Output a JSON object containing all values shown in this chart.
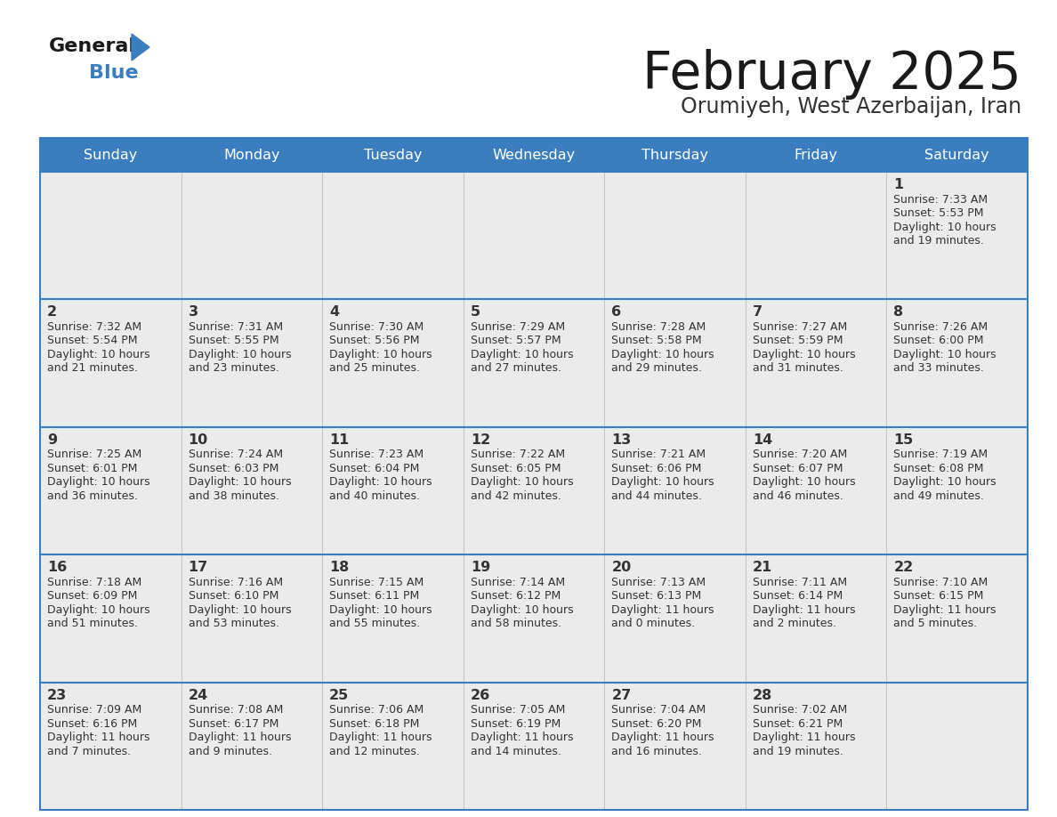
{
  "title": "February 2025",
  "subtitle": "Orumiyeh, West Azerbaijan, Iran",
  "days_of_week": [
    "Sunday",
    "Monday",
    "Tuesday",
    "Wednesday",
    "Thursday",
    "Friday",
    "Saturday"
  ],
  "header_bg": "#3a7ebf",
  "header_text": "#ffffff",
  "cell_bg_light": "#ebebeb",
  "border_color": "#3a7ebf",
  "text_color": "#333333",
  "calendar_data": [
    {
      "day": 1,
      "col": 6,
      "row": 0,
      "sunrise": "7:33 AM",
      "sunset": "5:53 PM",
      "daylight": "10 hours and 19 minutes."
    },
    {
      "day": 2,
      "col": 0,
      "row": 1,
      "sunrise": "7:32 AM",
      "sunset": "5:54 PM",
      "daylight": "10 hours and 21 minutes."
    },
    {
      "day": 3,
      "col": 1,
      "row": 1,
      "sunrise": "7:31 AM",
      "sunset": "5:55 PM",
      "daylight": "10 hours and 23 minutes."
    },
    {
      "day": 4,
      "col": 2,
      "row": 1,
      "sunrise": "7:30 AM",
      "sunset": "5:56 PM",
      "daylight": "10 hours and 25 minutes."
    },
    {
      "day": 5,
      "col": 3,
      "row": 1,
      "sunrise": "7:29 AM",
      "sunset": "5:57 PM",
      "daylight": "10 hours and 27 minutes."
    },
    {
      "day": 6,
      "col": 4,
      "row": 1,
      "sunrise": "7:28 AM",
      "sunset": "5:58 PM",
      "daylight": "10 hours and 29 minutes."
    },
    {
      "day": 7,
      "col": 5,
      "row": 1,
      "sunrise": "7:27 AM",
      "sunset": "5:59 PM",
      "daylight": "10 hours and 31 minutes."
    },
    {
      "day": 8,
      "col": 6,
      "row": 1,
      "sunrise": "7:26 AM",
      "sunset": "6:00 PM",
      "daylight": "10 hours and 33 minutes."
    },
    {
      "day": 9,
      "col": 0,
      "row": 2,
      "sunrise": "7:25 AM",
      "sunset": "6:01 PM",
      "daylight": "10 hours and 36 minutes."
    },
    {
      "day": 10,
      "col": 1,
      "row": 2,
      "sunrise": "7:24 AM",
      "sunset": "6:03 PM",
      "daylight": "10 hours and 38 minutes."
    },
    {
      "day": 11,
      "col": 2,
      "row": 2,
      "sunrise": "7:23 AM",
      "sunset": "6:04 PM",
      "daylight": "10 hours and 40 minutes."
    },
    {
      "day": 12,
      "col": 3,
      "row": 2,
      "sunrise": "7:22 AM",
      "sunset": "6:05 PM",
      "daylight": "10 hours and 42 minutes."
    },
    {
      "day": 13,
      "col": 4,
      "row": 2,
      "sunrise": "7:21 AM",
      "sunset": "6:06 PM",
      "daylight": "10 hours and 44 minutes."
    },
    {
      "day": 14,
      "col": 5,
      "row": 2,
      "sunrise": "7:20 AM",
      "sunset": "6:07 PM",
      "daylight": "10 hours and 46 minutes."
    },
    {
      "day": 15,
      "col": 6,
      "row": 2,
      "sunrise": "7:19 AM",
      "sunset": "6:08 PM",
      "daylight": "10 hours and 49 minutes."
    },
    {
      "day": 16,
      "col": 0,
      "row": 3,
      "sunrise": "7:18 AM",
      "sunset": "6:09 PM",
      "daylight": "10 hours and 51 minutes."
    },
    {
      "day": 17,
      "col": 1,
      "row": 3,
      "sunrise": "7:16 AM",
      "sunset": "6:10 PM",
      "daylight": "10 hours and 53 minutes."
    },
    {
      "day": 18,
      "col": 2,
      "row": 3,
      "sunrise": "7:15 AM",
      "sunset": "6:11 PM",
      "daylight": "10 hours and 55 minutes."
    },
    {
      "day": 19,
      "col": 3,
      "row": 3,
      "sunrise": "7:14 AM",
      "sunset": "6:12 PM",
      "daylight": "10 hours and 58 minutes."
    },
    {
      "day": 20,
      "col": 4,
      "row": 3,
      "sunrise": "7:13 AM",
      "sunset": "6:13 PM",
      "daylight": "11 hours and 0 minutes."
    },
    {
      "day": 21,
      "col": 5,
      "row": 3,
      "sunrise": "7:11 AM",
      "sunset": "6:14 PM",
      "daylight": "11 hours and 2 minutes."
    },
    {
      "day": 22,
      "col": 6,
      "row": 3,
      "sunrise": "7:10 AM",
      "sunset": "6:15 PM",
      "daylight": "11 hours and 5 minutes."
    },
    {
      "day": 23,
      "col": 0,
      "row": 4,
      "sunrise": "7:09 AM",
      "sunset": "6:16 PM",
      "daylight": "11 hours and 7 minutes."
    },
    {
      "day": 24,
      "col": 1,
      "row": 4,
      "sunrise": "7:08 AM",
      "sunset": "6:17 PM",
      "daylight": "11 hours and 9 minutes."
    },
    {
      "day": 25,
      "col": 2,
      "row": 4,
      "sunrise": "7:06 AM",
      "sunset": "6:18 PM",
      "daylight": "11 hours and 12 minutes."
    },
    {
      "day": 26,
      "col": 3,
      "row": 4,
      "sunrise": "7:05 AM",
      "sunset": "6:19 PM",
      "daylight": "11 hours and 14 minutes."
    },
    {
      "day": 27,
      "col": 4,
      "row": 4,
      "sunrise": "7:04 AM",
      "sunset": "6:20 PM",
      "daylight": "11 hours and 16 minutes."
    },
    {
      "day": 28,
      "col": 5,
      "row": 4,
      "sunrise": "7:02 AM",
      "sunset": "6:21 PM",
      "daylight": "11 hours and 19 minutes."
    }
  ]
}
